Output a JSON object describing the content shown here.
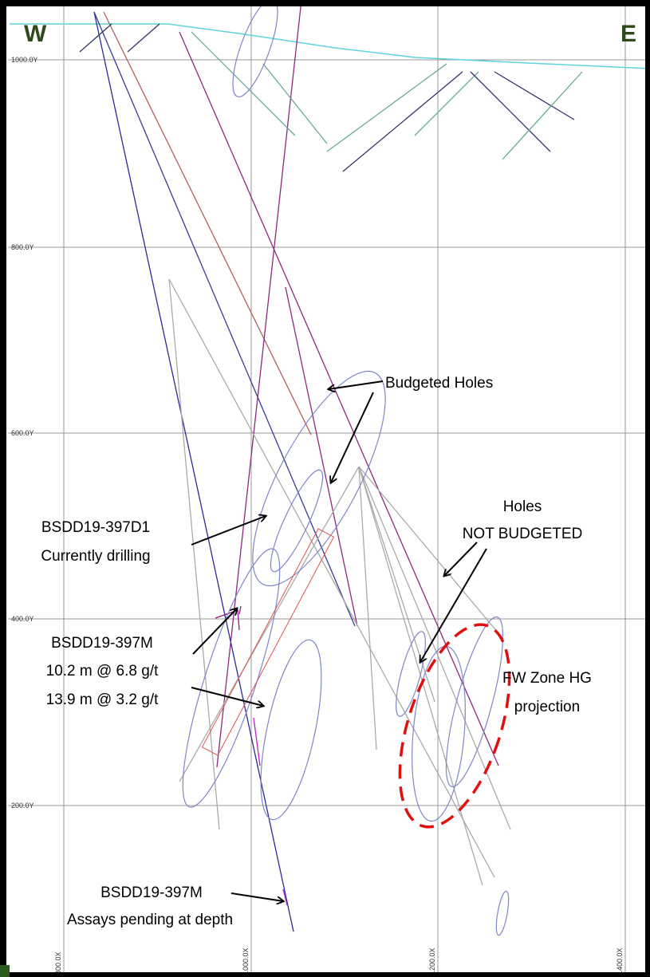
{
  "header": {
    "west": "W",
    "east": "E"
  },
  "grid": {
    "y_labels": [
      "1000.0Y",
      "800.0Y",
      "600.0Y",
      "400.0Y",
      "200.0Y"
    ],
    "x_labels": [
      "800.0X",
      "1000.0X",
      "1200.0X",
      "1400.0X"
    ]
  },
  "annotations": {
    "budgeted": "Budgeted Holes",
    "not_budgeted": [
      "Holes",
      "NOT BUDGETED"
    ],
    "current": [
      "BSDD19-397D1",
      "Currently drilling"
    ],
    "result": [
      "BSDD19-397M",
      "10.2 m @ 6.8 g/t",
      "13.9 m @ 3.2 g/t"
    ],
    "fw_zone": [
      "FW Zone HG",
      "projection"
    ],
    "pending": [
      "BSDD19-397M",
      "Assays pending at depth"
    ]
  }
}
